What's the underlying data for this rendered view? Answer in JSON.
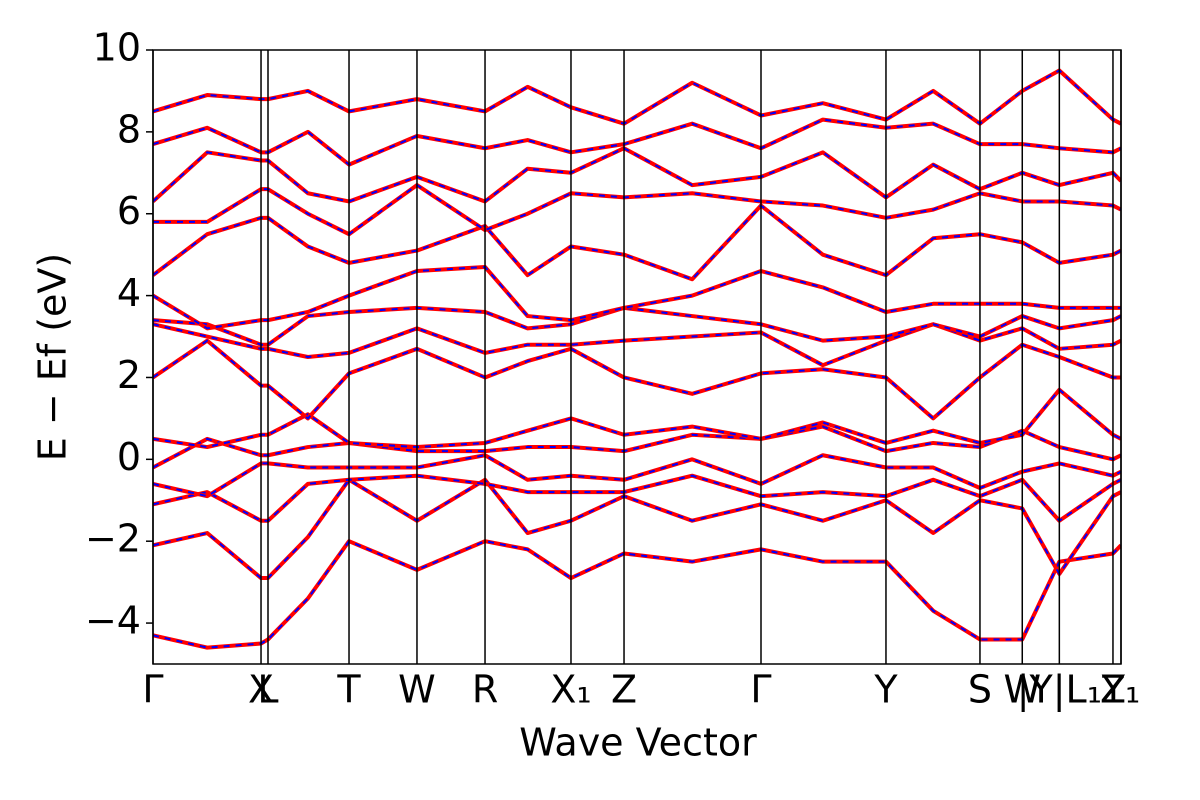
{
  "chart_data": {
    "type": "line",
    "xlabel": "Wave Vector",
    "ylabel": "E − Ef (eV)",
    "xlim": [
      0,
      1
    ],
    "xticks": [
      {
        "value": 0,
        "label": "Γ"
      },
      {
        "value": 0.1116,
        "label": "X"
      },
      {
        "value": 0.1188,
        "label": "L"
      },
      {
        "value": 0.2025,
        "label": "T"
      },
      {
        "value": 0.2727,
        "label": "W"
      },
      {
        "value": 0.343,
        "label": "R"
      },
      {
        "value": 0.4318,
        "label": "X₁"
      },
      {
        "value": 0.4866,
        "label": "Z"
      },
      {
        "value": 0.6281,
        "label": "Γ"
      },
      {
        "value": 0.7572,
        "label": "Y"
      },
      {
        "value": 0.8543,
        "label": "S"
      },
      {
        "value": 0.898,
        "label": "W"
      },
      {
        "value": 0.9363,
        "label": "|Y|L₁"
      },
      {
        "value": 0.9917,
        "label": "Z"
      },
      {
        "value": 1,
        "label": "Y₁"
      }
    ],
    "ylim": [
      -5,
      10
    ],
    "yticks": [
      {
        "value": -4,
        "label": "−4"
      },
      {
        "value": -2,
        "label": "−2"
      },
      0,
      2,
      4,
      6,
      8,
      10
    ],
    "overlay_color": "#0000ff",
    "overlay_dashed": true,
    "x": [
      0,
      0.056,
      0.1116,
      0.1188,
      0.16,
      0.2025,
      0.2727,
      0.343,
      0.387,
      0.4318,
      0.4866,
      0.557,
      0.6281,
      0.692,
      0.7572,
      0.806,
      0.8543,
      0.898,
      0.9363,
      0.9917,
      1
    ],
    "series": [
      {
        "color": "#ff0000",
        "values": [
          -4.3,
          -4.6,
          -4.5,
          -4.4,
          -3.4,
          -2.0,
          -2.7,
          -2.0,
          -2.2,
          -2.9,
          -2.3,
          -2.5,
          -2.2,
          -2.5,
          -2.5,
          -3.7,
          -4.4,
          -4.4,
          -2.5,
          -2.3,
          -2.1
        ]
      },
      {
        "color": "#ff0000",
        "values": [
          -2.1,
          -1.8,
          -2.9,
          -2.9,
          -1.9,
          -0.5,
          -1.5,
          -0.5,
          -1.8,
          -1.5,
          -0.9,
          -1.5,
          -1.1,
          -1.5,
          -1.0,
          -1.8,
          -1.0,
          -1.2,
          -2.8,
          -0.9,
          -0.8
        ]
      },
      {
        "color": "#ff0000",
        "values": [
          -1.1,
          -0.8,
          -1.5,
          -1.5,
          -0.6,
          -0.5,
          -0.4,
          -0.6,
          -0.8,
          -0.8,
          -0.8,
          -0.4,
          -0.9,
          -0.8,
          -0.9,
          -0.5,
          -0.9,
          -0.5,
          -1.5,
          -0.6,
          -0.5
        ]
      },
      {
        "color": "#ff0000",
        "values": [
          -0.6,
          -0.9,
          -0.1,
          -0.1,
          -0.2,
          -0.2,
          -0.2,
          0.1,
          -0.5,
          -0.4,
          -0.5,
          0.0,
          -0.6,
          0.1,
          -0.2,
          -0.2,
          -0.7,
          -0.3,
          -0.1,
          -0.4,
          -0.3
        ]
      },
      {
        "color": "#ff0000",
        "values": [
          -0.2,
          0.5,
          0.1,
          0.1,
          0.3,
          0.4,
          0.2,
          0.2,
          0.3,
          0.3,
          0.2,
          0.6,
          0.5,
          0.8,
          0.2,
          0.4,
          0.3,
          0.7,
          0.3,
          0.0,
          0.1
        ]
      },
      {
        "color": "#ff0000",
        "values": [
          0.5,
          0.3,
          0.6,
          0.6,
          1.1,
          0.4,
          0.3,
          0.4,
          0.7,
          1.0,
          0.6,
          0.8,
          0.5,
          0.9,
          0.4,
          0.7,
          0.4,
          0.6,
          1.7,
          0.6,
          0.5
        ]
      },
      {
        "color": "#ff0000",
        "values": [
          2.0,
          2.9,
          1.8,
          1.8,
          1.0,
          2.1,
          2.7,
          2.0,
          2.4,
          2.7,
          2.0,
          1.6,
          2.1,
          2.2,
          2.0,
          1.0,
          2.0,
          2.8,
          2.5,
          2.0,
          2.0
        ]
      },
      {
        "color": "#ff0000",
        "values": [
          3.3,
          3.0,
          2.7,
          2.7,
          2.5,
          2.6,
          3.2,
          2.6,
          2.8,
          2.8,
          2.9,
          3.0,
          3.1,
          2.3,
          2.9,
          3.3,
          2.9,
          3.2,
          2.7,
          2.8,
          2.9
        ]
      },
      {
        "color": "#ff0000",
        "values": [
          3.4,
          3.3,
          2.8,
          2.8,
          3.5,
          3.6,
          3.7,
          3.6,
          3.2,
          3.3,
          3.7,
          3.5,
          3.3,
          2.9,
          3.0,
          3.3,
          3.0,
          3.5,
          3.2,
          3.4,
          3.5
        ]
      },
      {
        "color": "#ff0000",
        "values": [
          4.0,
          3.2,
          3.4,
          3.4,
          3.6,
          4.0,
          4.6,
          4.7,
          3.5,
          3.4,
          3.7,
          4.0,
          4.6,
          4.2,
          3.6,
          3.8,
          3.8,
          3.8,
          3.7,
          3.7,
          3.7
        ]
      },
      {
        "color": "#ff0000",
        "values": [
          4.5,
          5.5,
          5.9,
          5.9,
          5.2,
          4.8,
          5.1,
          5.7,
          4.5,
          5.2,
          5.0,
          4.4,
          6.2,
          5.0,
          4.5,
          5.4,
          5.5,
          5.3,
          4.8,
          5.0,
          5.1
        ]
      },
      {
        "color": "#ff0000",
        "values": [
          5.8,
          5.8,
          6.6,
          6.6,
          6.0,
          5.5,
          6.7,
          5.6,
          6.0,
          6.5,
          6.4,
          6.5,
          6.3,
          6.2,
          5.9,
          6.1,
          6.5,
          6.3,
          6.3,
          6.2,
          6.1
        ]
      },
      {
        "color": "#ff0000",
        "values": [
          6.3,
          7.5,
          7.3,
          7.3,
          6.5,
          6.3,
          6.9,
          6.3,
          7.1,
          7.0,
          7.6,
          6.7,
          6.9,
          7.5,
          6.4,
          7.2,
          6.6,
          7.0,
          6.7,
          7.0,
          6.8
        ]
      },
      {
        "color": "#ff0000",
        "values": [
          7.7,
          8.1,
          7.5,
          7.5,
          8.0,
          7.2,
          7.9,
          7.6,
          7.8,
          7.5,
          7.7,
          8.2,
          7.6,
          8.3,
          8.1,
          8.2,
          7.7,
          7.7,
          7.6,
          7.5,
          7.6
        ]
      },
      {
        "color": "#ff0000",
        "values": [
          8.5,
          8.9,
          8.8,
          8.8,
          9.0,
          8.5,
          8.8,
          8.5,
          9.1,
          8.6,
          8.2,
          9.2,
          8.4,
          8.7,
          8.3,
          9.0,
          8.2,
          9.0,
          9.5,
          8.3,
          8.2
        ]
      }
    ]
  }
}
